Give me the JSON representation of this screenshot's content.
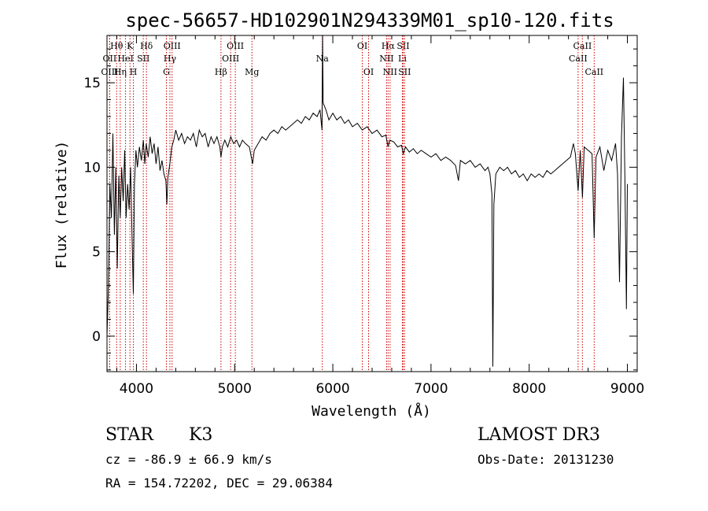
{
  "chart_data": {
    "type": "line",
    "title": "spec-56657-HD102901N294339M01_sp10-120.fits",
    "xlabel": "Wavelength (Å)",
    "ylabel": "Flux (relative)",
    "xlim": [
      3700,
      9100
    ],
    "ylim": [
      -2.1,
      17.8
    ],
    "xticks": [
      4000,
      5000,
      6000,
      7000,
      8000,
      9000
    ],
    "yticks": [
      0,
      5,
      10,
      15
    ],
    "grid": false,
    "color": "#000000",
    "line_marker_color": "#cc0000",
    "series": [
      {
        "name": "flux",
        "points": [
          [
            3700,
            0
          ],
          [
            3715,
            3
          ],
          [
            3730,
            9
          ],
          [
            3745,
            7
          ],
          [
            3760,
            12
          ],
          [
            3775,
            6
          ],
          [
            3790,
            10
          ],
          [
            3805,
            4
          ],
          [
            3820,
            9.5
          ],
          [
            3835,
            7
          ],
          [
            3850,
            10
          ],
          [
            3865,
            8
          ],
          [
            3880,
            11
          ],
          [
            3895,
            7
          ],
          [
            3910,
            9
          ],
          [
            3925,
            7.5
          ],
          [
            3940,
            10
          ],
          [
            3955,
            6
          ],
          [
            3968,
            2.5
          ],
          [
            3980,
            9
          ],
          [
            3995,
            11
          ],
          [
            4010,
            10
          ],
          [
            4030,
            11.2
          ],
          [
            4050,
            10.4
          ],
          [
            4070,
            11.6
          ],
          [
            4085,
            10.2
          ],
          [
            4100,
            11.4
          ],
          [
            4120,
            10.6
          ],
          [
            4140,
            11.8
          ],
          [
            4160,
            10.8
          ],
          [
            4180,
            11.4
          ],
          [
            4200,
            10.2
          ],
          [
            4220,
            11.2
          ],
          [
            4240,
            9.8
          ],
          [
            4260,
            10.4
          ],
          [
            4280,
            9.6
          ],
          [
            4300,
            9.2
          ],
          [
            4310,
            7.8
          ],
          [
            4320,
            9.4
          ],
          [
            4340,
            10.2
          ],
          [
            4360,
            11.2
          ],
          [
            4380,
            11.6
          ],
          [
            4400,
            12.2
          ],
          [
            4430,
            11.6
          ],
          [
            4460,
            12
          ],
          [
            4490,
            11.4
          ],
          [
            4520,
            11.8
          ],
          [
            4550,
            11.6
          ],
          [
            4580,
            12
          ],
          [
            4610,
            11.2
          ],
          [
            4640,
            12.2
          ],
          [
            4670,
            11.8
          ],
          [
            4700,
            12
          ],
          [
            4730,
            11.2
          ],
          [
            4760,
            11.8
          ],
          [
            4790,
            11.4
          ],
          [
            4820,
            11.8
          ],
          [
            4850,
            11.2
          ],
          [
            4861,
            10.6
          ],
          [
            4875,
            11.2
          ],
          [
            4900,
            11.6
          ],
          [
            4930,
            11.2
          ],
          [
            4960,
            11.8
          ],
          [
            4990,
            11.4
          ],
          [
            5020,
            11.6
          ],
          [
            5050,
            11.2
          ],
          [
            5080,
            11.6
          ],
          [
            5110,
            11.4
          ],
          [
            5150,
            11.2
          ],
          [
            5183,
            10.2
          ],
          [
            5200,
            11
          ],
          [
            5240,
            11.4
          ],
          [
            5280,
            11.8
          ],
          [
            5320,
            11.6
          ],
          [
            5360,
            12
          ],
          [
            5400,
            12.2
          ],
          [
            5440,
            12
          ],
          [
            5480,
            12.4
          ],
          [
            5520,
            12.2
          ],
          [
            5560,
            12.4
          ],
          [
            5600,
            12.6
          ],
          [
            5640,
            12.8
          ],
          [
            5680,
            12.6
          ],
          [
            5720,
            13
          ],
          [
            5760,
            12.8
          ],
          [
            5800,
            13.2
          ],
          [
            5840,
            13
          ],
          [
            5870,
            13.4
          ],
          [
            5890,
            12.2
          ],
          [
            5896,
            17.8
          ],
          [
            5902,
            13.8
          ],
          [
            5930,
            13.4
          ],
          [
            5960,
            12.8
          ],
          [
            6000,
            13.2
          ],
          [
            6040,
            12.8
          ],
          [
            6080,
            13
          ],
          [
            6120,
            12.6
          ],
          [
            6160,
            12.8
          ],
          [
            6200,
            12.4
          ],
          [
            6250,
            12.6
          ],
          [
            6300,
            12.2
          ],
          [
            6350,
            12.4
          ],
          [
            6400,
            12
          ],
          [
            6450,
            12.2
          ],
          [
            6500,
            11.8
          ],
          [
            6540,
            11.9
          ],
          [
            6563,
            11.2
          ],
          [
            6580,
            11.6
          ],
          [
            6620,
            11.5
          ],
          [
            6660,
            11.2
          ],
          [
            6700,
            11.3
          ],
          [
            6717,
            10.8
          ],
          [
            6740,
            11.2
          ],
          [
            6780,
            10.9
          ],
          [
            6820,
            11.1
          ],
          [
            6860,
            10.8
          ],
          [
            6900,
            11
          ],
          [
            6950,
            10.8
          ],
          [
            7000,
            10.6
          ],
          [
            7050,
            10.8
          ],
          [
            7100,
            10.4
          ],
          [
            7150,
            10.6
          ],
          [
            7200,
            10.4
          ],
          [
            7250,
            10.1
          ],
          [
            7280,
            9.2
          ],
          [
            7300,
            10.4
          ],
          [
            7350,
            10.2
          ],
          [
            7400,
            10.4
          ],
          [
            7450,
            10
          ],
          [
            7500,
            10.2
          ],
          [
            7550,
            9.8
          ],
          [
            7580,
            10
          ],
          [
            7600,
            9.6
          ],
          [
            7620,
            8.4
          ],
          [
            7630,
            -1.8
          ],
          [
            7640,
            7.8
          ],
          [
            7660,
            9.6
          ],
          [
            7700,
            10
          ],
          [
            7740,
            9.8
          ],
          [
            7780,
            10
          ],
          [
            7820,
            9.6
          ],
          [
            7860,
            9.8
          ],
          [
            7900,
            9.4
          ],
          [
            7940,
            9.6
          ],
          [
            7980,
            9.2
          ],
          [
            8020,
            9.6
          ],
          [
            8060,
            9.4
          ],
          [
            8100,
            9.6
          ],
          [
            8140,
            9.4
          ],
          [
            8180,
            9.8
          ],
          [
            8220,
            9.6
          ],
          [
            8260,
            9.8
          ],
          [
            8300,
            10
          ],
          [
            8340,
            10.2
          ],
          [
            8380,
            10.4
          ],
          [
            8420,
            10.6
          ],
          [
            8450,
            11.4
          ],
          [
            8470,
            10.8
          ],
          [
            8498,
            8.6
          ],
          [
            8520,
            11
          ],
          [
            8542,
            8.2
          ],
          [
            8560,
            11.2
          ],
          [
            8600,
            11
          ],
          [
            8640,
            10.8
          ],
          [
            8662,
            5.8
          ],
          [
            8680,
            10.6
          ],
          [
            8720,
            11.2
          ],
          [
            8760,
            9.8
          ],
          [
            8800,
            11
          ],
          [
            8840,
            10.4
          ],
          [
            8880,
            11.4
          ],
          [
            8900,
            9.6
          ],
          [
            8920,
            3.2
          ],
          [
            8940,
            11.8
          ],
          [
            8960,
            15.3
          ],
          [
            8975,
            9.2
          ],
          [
            8990,
            1.6
          ],
          [
            9000,
            9
          ]
        ]
      }
    ],
    "spectral_lines": [
      {
        "label": "Hθ",
        "x": 3798,
        "row": 1
      },
      {
        "label": "OII",
        "x": 3727,
        "row": 2
      },
      {
        "label": "OIII",
        "x": 3727,
        "row": 3
      },
      {
        "label": "K",
        "x": 3934,
        "row": 1
      },
      {
        "label": "HeI",
        "x": 3889,
        "row": 2
      },
      {
        "label": "Hη",
        "x": 3835,
        "row": 3
      },
      {
        "label": "Hδ",
        "x": 4102,
        "row": 1
      },
      {
        "label": "SII",
        "x": 4070,
        "row": 2
      },
      {
        "label": "H",
        "x": 3969,
        "row": 3
      },
      {
        "label": "OIII",
        "x": 4363,
        "row": 1
      },
      {
        "label": "Hγ",
        "x": 4341,
        "row": 2
      },
      {
        "label": "G",
        "x": 4305,
        "row": 3
      },
      {
        "label": "Hβ",
        "x": 4861,
        "row": 3
      },
      {
        "label": "OIII",
        "x": 5007,
        "row": 1
      },
      {
        "label": "OIII",
        "x": 4959,
        "row": 2
      },
      {
        "label": "Mg",
        "x": 5176,
        "row": 3
      },
      {
        "label": "Na",
        "x": 5893,
        "row": 2
      },
      {
        "label": "OI",
        "x": 6300,
        "row": 1
      },
      {
        "label": "OI",
        "x": 6364,
        "row": 3
      },
      {
        "label": "Hα",
        "x": 6563,
        "row": 1
      },
      {
        "label": "SII",
        "x": 6716,
        "row": 1
      },
      {
        "label": "NII",
        "x": 6548,
        "row": 2
      },
      {
        "label": "Li",
        "x": 6708,
        "row": 2
      },
      {
        "label": "NII",
        "x": 6583,
        "row": 3
      },
      {
        "label": "SII",
        "x": 6731,
        "row": 3
      },
      {
        "label": "CaII",
        "x": 8542,
        "row": 1
      },
      {
        "label": "CaII",
        "x": 8498,
        "row": 2
      },
      {
        "label": "CaII",
        "x": 8662,
        "row": 3
      }
    ]
  },
  "info": {
    "class_label": "STAR",
    "subclass_label": "K3",
    "survey": "LAMOST DR3",
    "cz": "cz = -86.9 ± 66.9 km/s",
    "obs_date": "Obs-Date: 20131230",
    "coords": "RA = 154.72202, DEC =  29.06384"
  }
}
